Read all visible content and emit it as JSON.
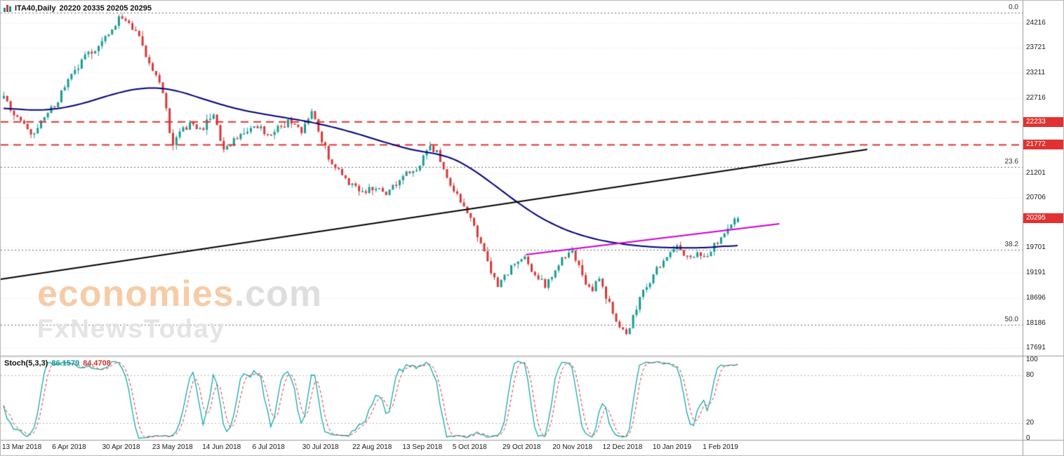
{
  "header": {
    "symbol_title": "ITA40,Daily",
    "ohlc_text": "20220 20335 20205 20295"
  },
  "watermark": {
    "brand": "economies",
    "suffix": ".com",
    "subbrand": "FxNewsToday"
  },
  "stoch_panel": {
    "label": "Stoch(5,3,3)",
    "main_value": "86.1579",
    "signal_value": "84.4708",
    "axis_labels": [
      100,
      80,
      20,
      0
    ],
    "level_lines": [
      80,
      20
    ]
  },
  "price_axis": {
    "labels": [
      24216,
      23721,
      23211,
      22716,
      21201,
      20706,
      19701,
      19191,
      18696,
      18186,
      17691
    ],
    "badges": [
      {
        "value": "22233",
        "price": 22233
      },
      {
        "value": "21772",
        "price": 21772
      },
      {
        "value": "20295",
        "price": 20295
      }
    ],
    "badge_color": "#e03232"
  },
  "fib_levels": [
    {
      "label": "0.0",
      "price": 24430
    },
    {
      "label": "23.6",
      "price": 21328
    },
    {
      "label": "38.2",
      "price": 19660
    },
    {
      "label": "50.0",
      "price": 18155
    }
  ],
  "time_axis": {
    "labels": [
      "13 Mar 2018",
      "6 Apr 2018",
      "30 Apr 2018",
      "23 May 2018",
      "14 Jun 2018",
      "6 Jul 2018",
      "30 Jul 2018",
      "22 Aug 2018",
      "13 Sep 2018",
      "5 Oct 2018",
      "29 Oct 2018",
      "20 Nov 2018",
      "12 Dec 2018",
      "10 Jan 2019",
      "1 Feb 2019"
    ],
    "range": "13 Mar 2018 - Feb 2019"
  },
  "chart_data": {
    "type": "candlestick",
    "title": "ITA40 Daily with 50-period MA, Fibonacci levels, resistance lines and Stoch(5,3,3)",
    "price_range": [
      17548,
      24500
    ],
    "current_bar": {
      "open": 20220,
      "high": 20335,
      "low": 20205,
      "close": 20295
    },
    "candle_count": 218,
    "colors": {
      "bull": "#169b93",
      "bear": "#d93636",
      "ma": "#00007f",
      "trendline": "#000000",
      "support_line": "#cc00cc",
      "resistance": "#e03232",
      "stoch_main": "#00a5a5",
      "stoch_signal": "#d93636",
      "grid": "#dde8ee",
      "fib_line": "#6a6a6a"
    },
    "close_path_anchors": [
      [
        0,
        22720
      ],
      [
        0.02,
        22250
      ],
      [
        0.04,
        21950
      ],
      [
        0.055,
        22300
      ],
      [
        0.07,
        22600
      ],
      [
        0.09,
        23100
      ],
      [
        0.11,
        23520
      ],
      [
        0.13,
        23780
      ],
      [
        0.145,
        24050
      ],
      [
        0.16,
        24400
      ],
      [
        0.17,
        24180
      ],
      [
        0.185,
        23900
      ],
      [
        0.195,
        23400
      ],
      [
        0.21,
        23150
      ],
      [
        0.22,
        22600
      ],
      [
        0.228,
        21700
      ],
      [
        0.24,
        22050
      ],
      [
        0.255,
        22200
      ],
      [
        0.27,
        22100
      ],
      [
        0.285,
        22400
      ],
      [
        0.3,
        21650
      ],
      [
        0.315,
        21900
      ],
      [
        0.33,
        22050
      ],
      [
        0.345,
        22150
      ],
      [
        0.36,
        22000
      ],
      [
        0.375,
        22100
      ],
      [
        0.39,
        22250
      ],
      [
        0.405,
        22050
      ],
      [
        0.42,
        22400
      ],
      [
        0.432,
        21900
      ],
      [
        0.445,
        21450
      ],
      [
        0.46,
        21150
      ],
      [
        0.475,
        20950
      ],
      [
        0.49,
        20800
      ],
      [
        0.505,
        20950
      ],
      [
        0.52,
        20780
      ],
      [
        0.535,
        21000
      ],
      [
        0.55,
        21200
      ],
      [
        0.565,
        21350
      ],
      [
        0.578,
        21720
      ],
      [
        0.59,
        21600
      ],
      [
        0.605,
        21100
      ],
      [
        0.62,
        20650
      ],
      [
        0.635,
        20300
      ],
      [
        0.65,
        19750
      ],
      [
        0.662,
        19300
      ],
      [
        0.672,
        18900
      ],
      [
        0.682,
        19100
      ],
      [
        0.695,
        19400
      ],
      [
        0.707,
        19550
      ],
      [
        0.718,
        19300
      ],
      [
        0.728,
        19100
      ],
      [
        0.738,
        18950
      ],
      [
        0.748,
        19200
      ],
      [
        0.76,
        19500
      ],
      [
        0.772,
        19680
      ],
      [
        0.782,
        19400
      ],
      [
        0.79,
        19000
      ],
      [
        0.8,
        18800
      ],
      [
        0.81,
        19150
      ],
      [
        0.82,
        18700
      ],
      [
        0.83,
        18400
      ],
      [
        0.84,
        18100
      ],
      [
        0.848,
        17950
      ],
      [
        0.856,
        18300
      ],
      [
        0.865,
        18650
      ],
      [
        0.875,
        18900
      ],
      [
        0.885,
        19150
      ],
      [
        0.895,
        19400
      ],
      [
        0.905,
        19600
      ],
      [
        0.915,
        19750
      ],
      [
        0.925,
        19600
      ],
      [
        0.935,
        19450
      ],
      [
        0.945,
        19650
      ],
      [
        0.955,
        19500
      ],
      [
        0.965,
        19700
      ],
      [
        0.975,
        19850
      ],
      [
        0.985,
        20050
      ],
      [
        0.993,
        20200
      ],
      [
        1,
        20295
      ]
    ],
    "ma50_anchors": [
      [
        0,
        22520
      ],
      [
        0.05,
        22450
      ],
      [
        0.1,
        22560
      ],
      [
        0.15,
        22800
      ],
      [
        0.19,
        22930
      ],
      [
        0.23,
        22900
      ],
      [
        0.27,
        22700
      ],
      [
        0.32,
        22480
      ],
      [
        0.37,
        22350
      ],
      [
        0.42,
        22230
      ],
      [
        0.47,
        22050
      ],
      [
        0.52,
        21820
      ],
      [
        0.56,
        21650
      ],
      [
        0.6,
        21580
      ],
      [
        0.63,
        21380
      ],
      [
        0.67,
        20950
      ],
      [
        0.71,
        20500
      ],
      [
        0.75,
        20150
      ],
      [
        0.79,
        19930
      ],
      [
        0.83,
        19800
      ],
      [
        0.87,
        19730
      ],
      [
        0.91,
        19700
      ],
      [
        0.95,
        19700
      ],
      [
        0.98,
        19720
      ],
      [
        1,
        19780
      ]
    ],
    "resistance_lines": [
      22233,
      21772
    ],
    "trendlines": [
      {
        "name": "major-ascending-trendline",
        "color": "#000000",
        "width": 2,
        "points": [
          [
            0,
            19070
          ],
          [
            0.848,
            21680
          ]
        ]
      },
      {
        "name": "short-term-support-line",
        "color": "#cc00cc",
        "width": 2,
        "points": [
          [
            0.514,
            19565
          ],
          [
            0.762,
            20185
          ]
        ]
      }
    ],
    "indicator": {
      "type": "stochastic",
      "name": "Stoch(5,3,3)",
      "period_k": 5,
      "period_d": 3,
      "slowing": 3,
      "main": 86.1579,
      "signal": 84.4708,
      "range": [
        0,
        100
      ],
      "levels": [
        20,
        80
      ]
    }
  }
}
